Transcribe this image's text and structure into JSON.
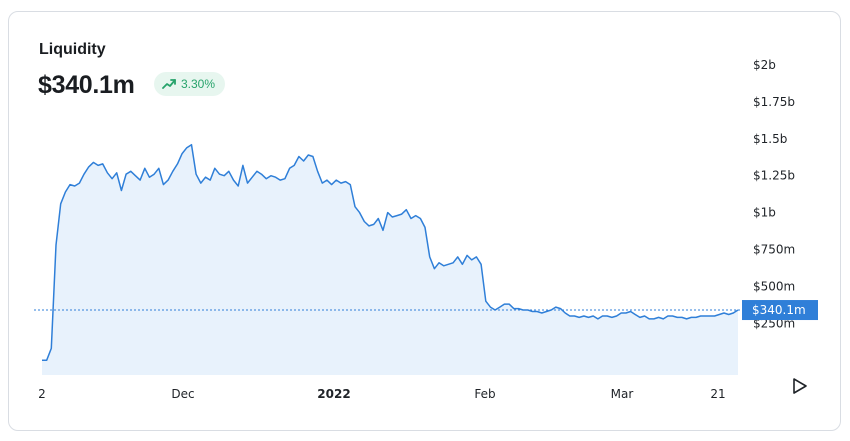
{
  "card": {
    "title": "Liquidity",
    "value": "$340.1m",
    "change": "3.30%",
    "change_icon": "trending-up-icon",
    "change_color": "#27a36b"
  },
  "controls": {
    "play_icon": "play-icon"
  },
  "chart_data": {
    "type": "area",
    "x_ticks": [
      "2",
      "Dec",
      "2022",
      "Feb",
      "Mar",
      "21"
    ],
    "y_ticks": [
      "$2b",
      "$1.75b",
      "$1.5b",
      "$1.25b",
      "$1b",
      "$750m",
      "$500m",
      "$250m"
    ],
    "y_tick_values": [
      2000,
      1750,
      1500,
      1250,
      1000,
      750,
      500,
      250
    ],
    "ylim": [
      -100,
      2000
    ],
    "current_value": 340.1,
    "current_label": "$340.1m",
    "line_color": "#2f7fd8",
    "fill_color": "#e8f2fc",
    "grid": false,
    "series": [
      {
        "values": [
          0,
          0,
          80,
          780,
          1060,
          1140,
          1190,
          1180,
          1200,
          1260,
          1310,
          1340,
          1320,
          1330,
          1270,
          1230,
          1270,
          1150,
          1260,
          1280,
          1250,
          1220,
          1300,
          1240,
          1260,
          1300,
          1190,
          1220,
          1280,
          1330,
          1400,
          1440,
          1460,
          1260,
          1200,
          1240,
          1220,
          1300,
          1260,
          1250,
          1280,
          1220,
          1180,
          1320,
          1200,
          1240,
          1280,
          1260,
          1230,
          1250,
          1240,
          1220,
          1230,
          1300,
          1320,
          1380,
          1350,
          1390,
          1380,
          1280,
          1200,
          1220,
          1190,
          1220,
          1200,
          1210,
          1190,
          1040,
          1000,
          940,
          910,
          920,
          960,
          880,
          1000,
          970,
          980,
          990,
          1020,
          960,
          980,
          960,
          900,
          700,
          620,
          660,
          640,
          650,
          660,
          700,
          650,
          710,
          680,
          700,
          650,
          400,
          360,
          340,
          360,
          380,
          380,
          350,
          350,
          340,
          340,
          330,
          330,
          320,
          330,
          340,
          360,
          350,
          320,
          300,
          300,
          290,
          300,
          290,
          300,
          280,
          300,
          300,
          290,
          300,
          320,
          320,
          330,
          310,
          290,
          300,
          280,
          280,
          290,
          280,
          300,
          300,
          290,
          290,
          280,
          290,
          290,
          300,
          300,
          300,
          300,
          310,
          320,
          310,
          320,
          340
        ]
      }
    ]
  }
}
